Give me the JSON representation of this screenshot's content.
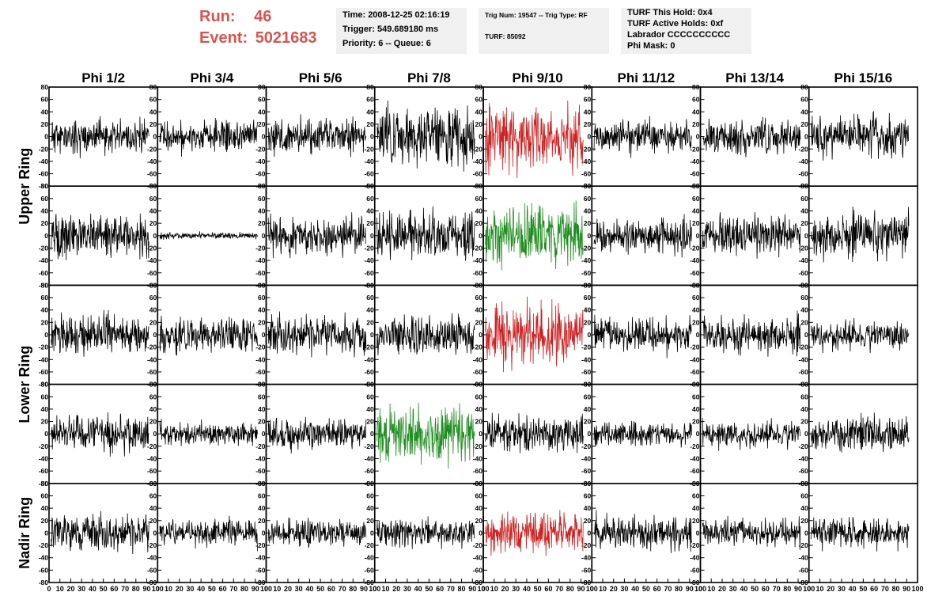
{
  "header": {
    "run_label": "Run:",
    "run_value": "46",
    "event_label": "Event:",
    "event_value": "5021683",
    "time_panel": {
      "time": "Time: 2008-12-25 02:16:19",
      "trigger": "Trigger: 549.689180 ms",
      "priority": "Priority: 6 -- Queue: 6"
    },
    "trig_panel": {
      "trig": "Trig Num: 19547 -- Trig Type: RF",
      "turf": "TURF: 85092"
    },
    "turf_panel": {
      "this_hold": "TURF This Hold: 0x4",
      "active_holds": "TURF Active Holds: 0xf",
      "labrador": "Labrador CCCCCCCCCC",
      "phi_mask": "Phi Mask: 0"
    },
    "colors": {
      "run_text": "#d9534f",
      "panel_bg": "#f0f0f0"
    }
  },
  "chart_data": {
    "type": "line",
    "columns": [
      "Phi 1/2",
      "Phi 3/4",
      "Phi 5/6",
      "Phi 7/8",
      "Phi 9/10",
      "Phi 11/12",
      "Phi 13/14",
      "Phi 15/16"
    ],
    "row_groups": [
      {
        "label": "Upper Ring",
        "rows": [
          0,
          1
        ]
      },
      {
        "label": "Lower Ring",
        "rows": [
          2,
          3
        ]
      },
      {
        "label": "Nadir Ring",
        "rows": [
          4
        ]
      }
    ],
    "ylim": [
      -80,
      80
    ],
    "xlim": [
      0,
      100
    ],
    "y_ticks": [
      "80",
      "60",
      "40",
      "20",
      "0",
      "-20",
      "-40",
      "-60",
      "-80"
    ],
    "y_tick_values": [
      80,
      60,
      40,
      20,
      0,
      -20,
      -40,
      -60,
      -80
    ],
    "x_ticks": [
      "0",
      "10",
      "20",
      "30",
      "40",
      "50",
      "60",
      "70",
      "80",
      "90",
      "100"
    ],
    "x_tick_values": [
      0,
      10,
      20,
      30,
      40,
      50,
      60,
      70,
      80,
      90,
      100
    ],
    "waveform_x_range": [
      2,
      92
    ],
    "colors": {
      "normal": "#000000",
      "triggered": "#cc2222",
      "triggered_alt": "#1e8c1e"
    },
    "waveforms": [
      {
        "row": 0,
        "col": 0,
        "amplitude": 13,
        "color": "normal",
        "seed": 11
      },
      {
        "row": 0,
        "col": 1,
        "amplitude": 12,
        "color": "normal",
        "seed": 12
      },
      {
        "row": 0,
        "col": 2,
        "amplitude": 14,
        "color": "normal",
        "seed": 13
      },
      {
        "row": 0,
        "col": 3,
        "amplitude": 22,
        "color": "normal",
        "seed": 14
      },
      {
        "row": 0,
        "col": 4,
        "amplitude": 25,
        "color": "triggered",
        "seed": 15
      },
      {
        "row": 0,
        "col": 5,
        "amplitude": 12,
        "color": "normal",
        "seed": 16
      },
      {
        "row": 0,
        "col": 6,
        "amplitude": 13,
        "color": "normal",
        "seed": 17
      },
      {
        "row": 0,
        "col": 7,
        "amplitude": 15,
        "color": "normal",
        "seed": 18
      },
      {
        "row": 1,
        "col": 0,
        "amplitude": 16,
        "color": "normal",
        "seed": 21
      },
      {
        "row": 1,
        "col": 1,
        "amplitude": 2.5,
        "color": "normal",
        "seed": 22
      },
      {
        "row": 1,
        "col": 2,
        "amplitude": 15,
        "color": "normal",
        "seed": 23
      },
      {
        "row": 1,
        "col": 3,
        "amplitude": 18,
        "color": "normal",
        "seed": 24
      },
      {
        "row": 1,
        "col": 4,
        "amplitude": 22,
        "color": "triggered_alt",
        "seed": 25
      },
      {
        "row": 1,
        "col": 5,
        "amplitude": 13,
        "color": "normal",
        "seed": 26
      },
      {
        "row": 1,
        "col": 6,
        "amplitude": 14,
        "color": "normal",
        "seed": 27
      },
      {
        "row": 1,
        "col": 7,
        "amplitude": 17,
        "color": "normal",
        "seed": 28
      },
      {
        "row": 2,
        "col": 0,
        "amplitude": 15,
        "color": "normal",
        "seed": 31
      },
      {
        "row": 2,
        "col": 1,
        "amplitude": 13,
        "color": "normal",
        "seed": 32
      },
      {
        "row": 2,
        "col": 2,
        "amplitude": 15,
        "color": "normal",
        "seed": 33
      },
      {
        "row": 2,
        "col": 3,
        "amplitude": 15,
        "color": "normal",
        "seed": 34
      },
      {
        "row": 2,
        "col": 4,
        "amplitude": 23,
        "color": "triggered",
        "seed": 35
      },
      {
        "row": 2,
        "col": 5,
        "amplitude": 14,
        "color": "normal",
        "seed": 36
      },
      {
        "row": 2,
        "col": 6,
        "amplitude": 14,
        "color": "normal",
        "seed": 37
      },
      {
        "row": 2,
        "col": 7,
        "amplitude": 11,
        "color": "normal",
        "seed": 38
      },
      {
        "row": 3,
        "col": 0,
        "amplitude": 14,
        "color": "normal",
        "seed": 41
      },
      {
        "row": 3,
        "col": 1,
        "amplitude": 9,
        "color": "normal",
        "seed": 42
      },
      {
        "row": 3,
        "col": 2,
        "amplitude": 12,
        "color": "normal",
        "seed": 43
      },
      {
        "row": 3,
        "col": 3,
        "amplitude": 22,
        "color": "triggered_alt",
        "seed": 44
      },
      {
        "row": 3,
        "col": 4,
        "amplitude": 15,
        "color": "normal",
        "seed": 45
      },
      {
        "row": 3,
        "col": 5,
        "amplitude": 9,
        "color": "normal",
        "seed": 46
      },
      {
        "row": 3,
        "col": 6,
        "amplitude": 10,
        "color": "normal",
        "seed": 47
      },
      {
        "row": 3,
        "col": 7,
        "amplitude": 14,
        "color": "normal",
        "seed": 48
      },
      {
        "row": 4,
        "col": 0,
        "amplitude": 14,
        "color": "normal",
        "seed": 51
      },
      {
        "row": 4,
        "col": 1,
        "amplitude": 11,
        "color": "normal",
        "seed": 52
      },
      {
        "row": 4,
        "col": 2,
        "amplitude": 10,
        "color": "normal",
        "seed": 53
      },
      {
        "row": 4,
        "col": 3,
        "amplitude": 11,
        "color": "normal",
        "seed": 54
      },
      {
        "row": 4,
        "col": 4,
        "amplitude": 15,
        "color": "triggered",
        "seed": 55
      },
      {
        "row": 4,
        "col": 5,
        "amplitude": 13,
        "color": "normal",
        "seed": 56
      },
      {
        "row": 4,
        "col": 6,
        "amplitude": 11,
        "color": "normal",
        "seed": 57
      },
      {
        "row": 4,
        "col": 7,
        "amplitude": 12,
        "color": "normal",
        "seed": 58
      }
    ]
  }
}
